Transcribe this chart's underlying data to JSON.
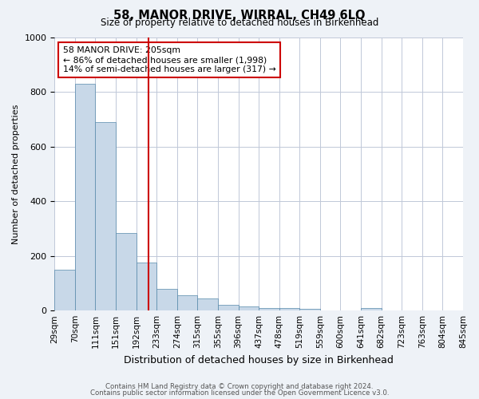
{
  "title": "58, MANOR DRIVE, WIRRAL, CH49 6LQ",
  "subtitle": "Size of property relative to detached houses in Birkenhead",
  "xlabel": "Distribution of detached houses by size in Birkenhead",
  "ylabel": "Number of detached properties",
  "bar_labels": [
    "29sqm",
    "70sqm",
    "111sqm",
    "151sqm",
    "192sqm",
    "233sqm",
    "274sqm",
    "315sqm",
    "355sqm",
    "396sqm",
    "437sqm",
    "478sqm",
    "519sqm",
    "559sqm",
    "600sqm",
    "641sqm",
    "682sqm",
    "723sqm",
    "763sqm",
    "804sqm",
    "845sqm"
  ],
  "bar_values": [
    150,
    830,
    690,
    285,
    175,
    78,
    55,
    45,
    22,
    15,
    8,
    8,
    5,
    0,
    0,
    10,
    0,
    0,
    0,
    0
  ],
  "bar_color": "#c8d8e8",
  "bar_edge_color": "#5588aa",
  "red_line_x": 4.62,
  "annotation_title": "58 MANOR DRIVE: 205sqm",
  "annotation_line1": "← 86% of detached houses are smaller (1,998)",
  "annotation_line2": "14% of semi-detached houses are larger (317) →",
  "annotation_box_color": "#ffffff",
  "annotation_box_edge": "#cc0000",
  "ylim": [
    0,
    1000
  ],
  "footnote1": "Contains HM Land Registry data © Crown copyright and database right 2024.",
  "footnote2": "Contains public sector information licensed under the Open Government Licence v3.0.",
  "bg_color": "#eef2f7",
  "plot_bg_color": "#ffffff",
  "grid_color": "#c0c8d8"
}
